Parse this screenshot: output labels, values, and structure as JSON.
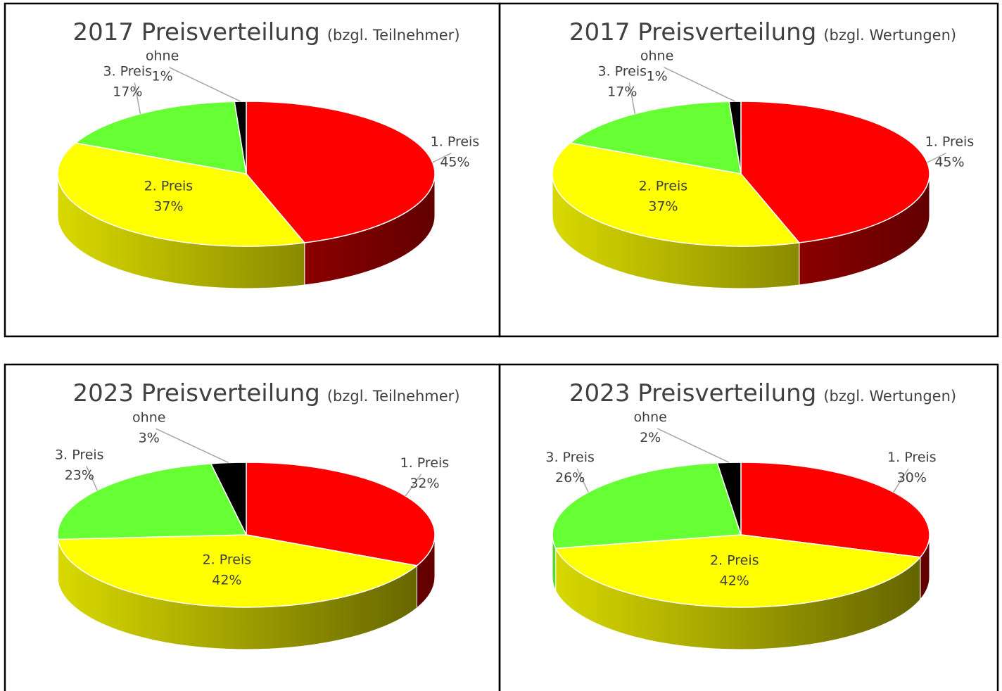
{
  "chart_data": [
    {
      "type": "pie",
      "title": "2017 Preisverteilung",
      "subtitle": "(bzgl. Teilnehmer)",
      "categories": [
        "1. Preis",
        "2. Preis",
        "3. Preis",
        "ohne"
      ],
      "values": [
        45,
        37,
        17,
        1
      ],
      "value_labels": [
        "45%",
        "37%",
        "17%",
        "1%"
      ],
      "colors": [
        "#ff0000",
        "#ffff00",
        "#66ff33",
        "#000000"
      ]
    },
    {
      "type": "pie",
      "title": "2017 Preisverteilung",
      "subtitle": "(bzgl. Wertungen)",
      "categories": [
        "1. Preis",
        "2. Preis",
        "3. Preis",
        "ohne"
      ],
      "values": [
        45,
        37,
        17,
        1
      ],
      "value_labels": [
        "45%",
        "37%",
        "17%",
        "1%"
      ],
      "colors": [
        "#ff0000",
        "#ffff00",
        "#66ff33",
        "#000000"
      ]
    },
    {
      "type": "pie",
      "title": "2023 Preisverteilung",
      "subtitle": "(bzgl. Teilnehmer)",
      "categories": [
        "1. Preis",
        "2. Preis",
        "3. Preis",
        "ohne"
      ],
      "values": [
        32,
        42,
        23,
        3
      ],
      "value_labels": [
        "32%",
        "42%",
        "23%",
        "3%"
      ],
      "colors": [
        "#ff0000",
        "#ffff00",
        "#66ff33",
        "#000000"
      ]
    },
    {
      "type": "pie",
      "title": "2023 Preisverteilung",
      "subtitle": "(bzgl. Wertungen)",
      "categories": [
        "1. Preis",
        "2. Preis",
        "3. Preis",
        "ohne"
      ],
      "values": [
        30,
        42,
        26,
        2
      ],
      "value_labels": [
        "30%",
        "42%",
        "26%",
        "2%"
      ],
      "colors": [
        "#ff0000",
        "#ffff00",
        "#66ff33",
        "#000000"
      ]
    }
  ]
}
